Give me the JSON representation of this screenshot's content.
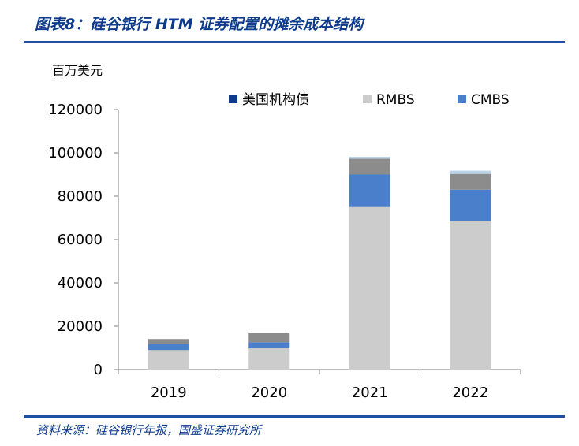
{
  "figure": {
    "title": "图表8：硅谷银行 HTM 证券配置的摊余成本结构",
    "source": "资料来源：硅谷银行年报，国盛证券研究所"
  },
  "chart_data": {
    "type": "bar",
    "stacked": true,
    "unit_label": "百万美元",
    "categories": [
      "2019",
      "2020",
      "2021",
      "2022"
    ],
    "series": [
      {
        "name": "RMBS",
        "color": "#cccccc",
        "values": [
          9000,
          9800,
          75000,
          68500
        ]
      },
      {
        "name": "CMBS",
        "color": "#4a7fcc",
        "values": [
          2800,
          2800,
          15000,
          14500
        ]
      },
      {
        "name": "",
        "color": "#8c8c8c",
        "values": [
          2300,
          4400,
          7300,
          7300
        ]
      },
      {
        "name": "",
        "color": "#bcd4ea",
        "values": [
          0,
          0,
          900,
          1500
        ]
      },
      {
        "name": "美国机构债",
        "color": "#0d3a8a",
        "values": [
          0,
          0,
          0,
          0
        ]
      }
    ],
    "legend_order": [
      4,
      0,
      1
    ],
    "legend_position": "top",
    "yticks": [
      0,
      20000,
      40000,
      60000,
      80000,
      100000,
      120000
    ],
    "ylim": [
      0,
      120000
    ],
    "grid": false
  }
}
